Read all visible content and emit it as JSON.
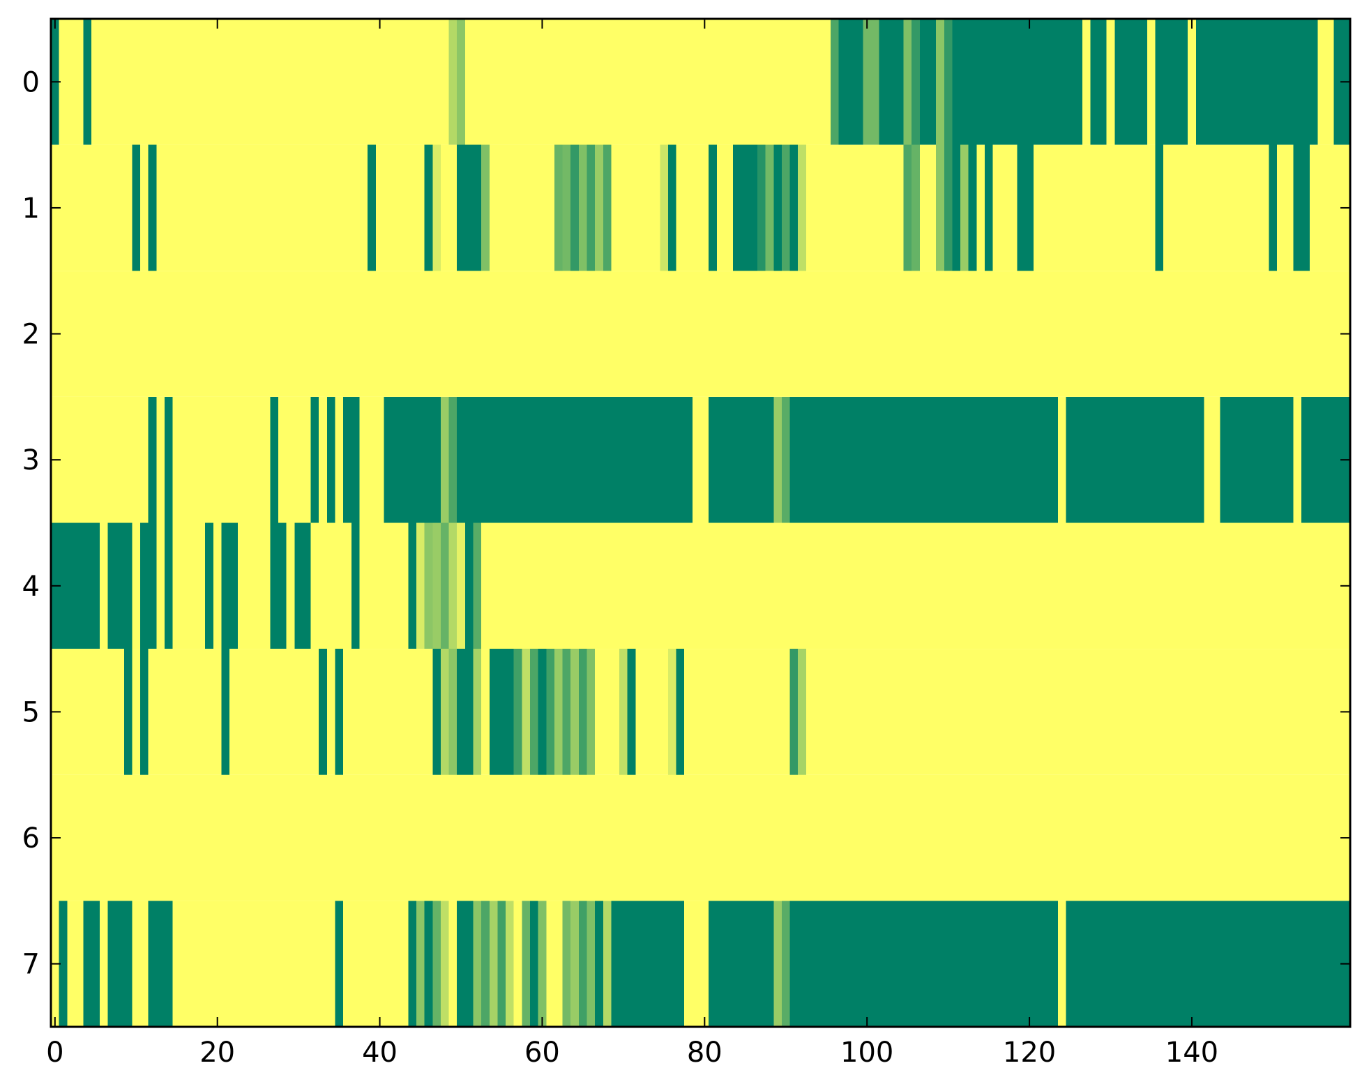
{
  "chart_data": {
    "type": "heatmap",
    "title": "",
    "xlabel": "",
    "ylabel": "",
    "colormap": "summer",
    "colors": {
      "low": "#008066",
      "high": "#ffff66",
      "axis": "#000000",
      "background": "#ffffff"
    },
    "grid": false,
    "n_cols": 160,
    "n_rows": 8,
    "x_range": [
      -0.5,
      159.5
    ],
    "y_range": [
      -0.5,
      7.5
    ],
    "x_ticks": [
      0,
      20,
      40,
      60,
      80,
      100,
      120,
      140
    ],
    "x_tick_labels": [
      "0",
      "20",
      "40",
      "60",
      "80",
      "100",
      "120",
      "140"
    ],
    "y_ticks": [
      0,
      1,
      2,
      3,
      4,
      5,
      6,
      7
    ],
    "y_tick_labels": [
      "0",
      "1",
      "2",
      "3",
      "4",
      "5",
      "6",
      "7"
    ],
    "default_value": 1,
    "rows": [
      {
        "row": 0,
        "cells": [
          [
            0,
            0,
            0
          ],
          [
            4,
            4,
            0
          ],
          [
            49,
            49,
            0.7
          ],
          [
            50,
            50,
            0.55
          ],
          [
            96,
            96,
            0.3
          ],
          [
            97,
            99,
            0
          ],
          [
            100,
            101,
            0.45
          ],
          [
            102,
            104,
            0
          ],
          [
            105,
            105,
            0.5
          ],
          [
            106,
            106,
            0.2
          ],
          [
            107,
            108,
            0
          ],
          [
            109,
            109,
            0.55
          ],
          [
            110,
            110,
            0.2
          ],
          [
            111,
            126,
            0
          ],
          [
            128,
            129,
            0
          ],
          [
            131,
            134,
            0
          ],
          [
            136,
            139,
            0
          ],
          [
            141,
            155,
            0
          ],
          [
            158,
            159,
            0
          ]
        ]
      },
      {
        "row": 1,
        "cells": [
          [
            10,
            10,
            0
          ],
          [
            12,
            12,
            0
          ],
          [
            39,
            39,
            0
          ],
          [
            46,
            46,
            0
          ],
          [
            47,
            47,
            0.85
          ],
          [
            50,
            50,
            0
          ],
          [
            51,
            52,
            0
          ],
          [
            53,
            53,
            0.5
          ],
          [
            62,
            62,
            0.4
          ],
          [
            63,
            63,
            0.45
          ],
          [
            64,
            64,
            0.2
          ],
          [
            65,
            65,
            0.5
          ],
          [
            66,
            66,
            0.25
          ],
          [
            67,
            67,
            0.6
          ],
          [
            68,
            68,
            0.3
          ],
          [
            75,
            75,
            0.8
          ],
          [
            76,
            76,
            0
          ],
          [
            81,
            81,
            0
          ],
          [
            84,
            84,
            0
          ],
          [
            85,
            86,
            0
          ],
          [
            87,
            87,
            0.15
          ],
          [
            88,
            88,
            0.45
          ],
          [
            89,
            89,
            0
          ],
          [
            90,
            90,
            0.3
          ],
          [
            91,
            91,
            0
          ],
          [
            92,
            92,
            0.75
          ],
          [
            105,
            105,
            0.3
          ],
          [
            106,
            106,
            0.4
          ],
          [
            109,
            109,
            0.55
          ],
          [
            110,
            110,
            0.2
          ],
          [
            111,
            111,
            0
          ],
          [
            112,
            112,
            0.6
          ],
          [
            113,
            113,
            0
          ],
          [
            115,
            115,
            0
          ],
          [
            119,
            120,
            0
          ],
          [
            136,
            136,
            0
          ],
          [
            150,
            150,
            0
          ],
          [
            153,
            154,
            0
          ]
        ]
      },
      {
        "row": 2,
        "cells": []
      },
      {
        "row": 3,
        "cells": [
          [
            12,
            12,
            0
          ],
          [
            14,
            14,
            0
          ],
          [
            27,
            27,
            0
          ],
          [
            32,
            32,
            0
          ],
          [
            34,
            34,
            0
          ],
          [
            36,
            37,
            0
          ],
          [
            41,
            47,
            0
          ],
          [
            48,
            48,
            0.6
          ],
          [
            49,
            49,
            0.3
          ],
          [
            50,
            78,
            0
          ],
          [
            81,
            88,
            0
          ],
          [
            89,
            89,
            0.6
          ],
          [
            90,
            90,
            0.35
          ],
          [
            91,
            123,
            0
          ],
          [
            125,
            141,
            0
          ],
          [
            144,
            152,
            0
          ],
          [
            154,
            159,
            0
          ]
        ]
      },
      {
        "row": 4,
        "cells": [
          [
            0,
            5,
            0
          ],
          [
            7,
            9,
            0
          ],
          [
            11,
            12,
            0
          ],
          [
            14,
            14,
            0
          ],
          [
            19,
            19,
            0
          ],
          [
            21,
            22,
            0
          ],
          [
            27,
            28,
            0
          ],
          [
            30,
            31,
            0
          ],
          [
            37,
            37,
            0
          ],
          [
            44,
            44,
            0
          ],
          [
            45,
            45,
            0.85
          ],
          [
            46,
            46,
            0.55
          ],
          [
            47,
            47,
            0.6
          ],
          [
            48,
            48,
            0.4
          ],
          [
            49,
            49,
            0.7
          ],
          [
            50,
            50,
            0.9
          ],
          [
            51,
            51,
            0
          ],
          [
            52,
            52,
            0.35
          ]
        ]
      },
      {
        "row": 5,
        "cells": [
          [
            9,
            9,
            0
          ],
          [
            11,
            11,
            0
          ],
          [
            21,
            21,
            0
          ],
          [
            33,
            33,
            0
          ],
          [
            35,
            35,
            0
          ],
          [
            47,
            47,
            0
          ],
          [
            48,
            48,
            0.7
          ],
          [
            49,
            49,
            0.55
          ],
          [
            50,
            51,
            0
          ],
          [
            52,
            52,
            0.65
          ],
          [
            54,
            56,
            0
          ],
          [
            57,
            57,
            0.25
          ],
          [
            58,
            58,
            0.75
          ],
          [
            59,
            59,
            0.3
          ],
          [
            60,
            60,
            0
          ],
          [
            61,
            61,
            0.25
          ],
          [
            62,
            62,
            0.6
          ],
          [
            63,
            63,
            0.3
          ],
          [
            64,
            64,
            0.6
          ],
          [
            65,
            65,
            0.25
          ],
          [
            66,
            66,
            0.5
          ],
          [
            70,
            70,
            0.75
          ],
          [
            71,
            71,
            0
          ],
          [
            76,
            76,
            0.85
          ],
          [
            77,
            77,
            0
          ],
          [
            91,
            91,
            0.2
          ],
          [
            92,
            92,
            0.65
          ]
        ]
      },
      {
        "row": 6,
        "cells": []
      },
      {
        "row": 7,
        "cells": [
          [
            1,
            1,
            0
          ],
          [
            4,
            5,
            0
          ],
          [
            7,
            9,
            0
          ],
          [
            12,
            14,
            0
          ],
          [
            35,
            35,
            0
          ],
          [
            44,
            44,
            0
          ],
          [
            45,
            45,
            0.55
          ],
          [
            46,
            46,
            0
          ],
          [
            47,
            47,
            0.4
          ],
          [
            48,
            48,
            0.75
          ],
          [
            50,
            51,
            0
          ],
          [
            52,
            52,
            0.55
          ],
          [
            53,
            53,
            0.3
          ],
          [
            54,
            54,
            0.65
          ],
          [
            55,
            55,
            0.25
          ],
          [
            56,
            56,
            0.75
          ],
          [
            58,
            58,
            0.4
          ],
          [
            59,
            59,
            0
          ],
          [
            60,
            60,
            0.5
          ],
          [
            63,
            63,
            0.45
          ],
          [
            64,
            64,
            0.6
          ],
          [
            65,
            65,
            0.25
          ],
          [
            66,
            66,
            0.5
          ],
          [
            67,
            67,
            0
          ],
          [
            68,
            68,
            0.7
          ],
          [
            69,
            77,
            0
          ],
          [
            81,
            88,
            0
          ],
          [
            89,
            89,
            0.6
          ],
          [
            90,
            90,
            0.35
          ],
          [
            91,
            123,
            0
          ],
          [
            125,
            159,
            0
          ]
        ]
      }
    ]
  }
}
